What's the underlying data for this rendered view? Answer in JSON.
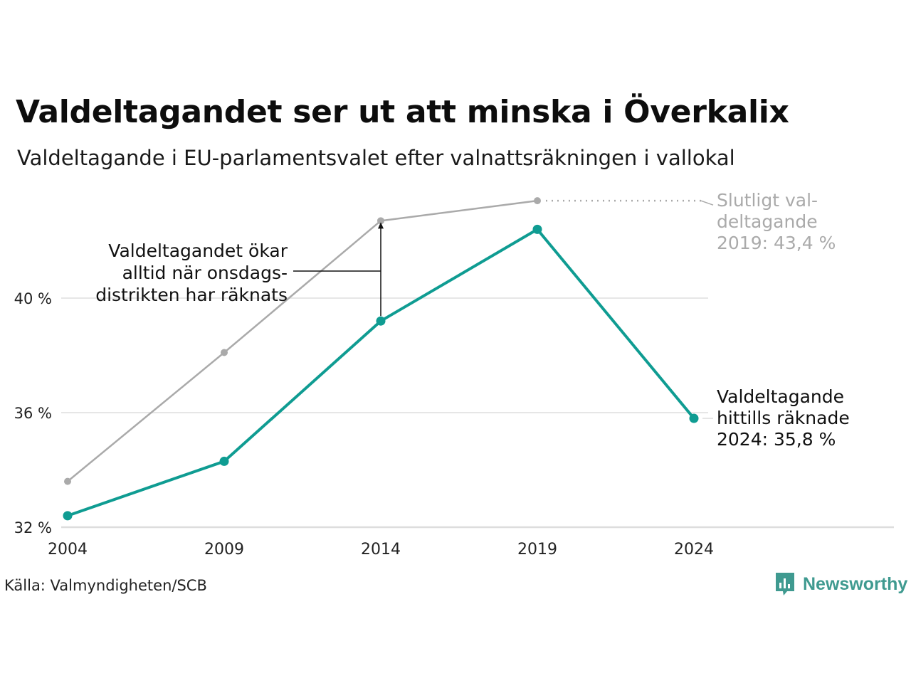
{
  "title": "Valdeltagandet ser ut att minska i Överkalix",
  "subtitle": "Valdeltagande i EU-parlamentsvalet efter valnattsräkningen i vallokal",
  "source": "Källa: Valmyndigheten/SCB",
  "logo": {
    "text": "Newsworthy",
    "icon": "newsworthy-logo-icon",
    "color": "#3f9a90"
  },
  "chart_data": {
    "type": "line",
    "x": [
      2004,
      2009,
      2014,
      2019,
      2024
    ],
    "x_ticks": [
      "2004",
      "2009",
      "2014",
      "2019",
      "2024"
    ],
    "y_ticks": [
      "32 %",
      "36 %",
      "40 %"
    ],
    "y_tick_values": [
      32,
      36,
      40
    ],
    "ylim": [
      32,
      44
    ],
    "grid": true,
    "series": [
      {
        "key": "final",
        "color": "#aaaaaa",
        "values": [
          33.6,
          38.1,
          42.7,
          43.4,
          null
        ]
      },
      {
        "key": "counted",
        "color": "#0f9c92",
        "values": [
          32.4,
          34.3,
          39.2,
          42.4,
          35.8
        ]
      }
    ],
    "annotations": {
      "wednesday": [
        "Valdeltagandet ökar",
        "alltid när onsdags-",
        "distrikten har räknats"
      ],
      "final": [
        "Slutligt val-",
        "deltagande",
        "2019: 43,4 %"
      ],
      "counted": [
        "Valdeltagande",
        "hittills räknade",
        "2024: 35,8 %"
      ]
    }
  }
}
